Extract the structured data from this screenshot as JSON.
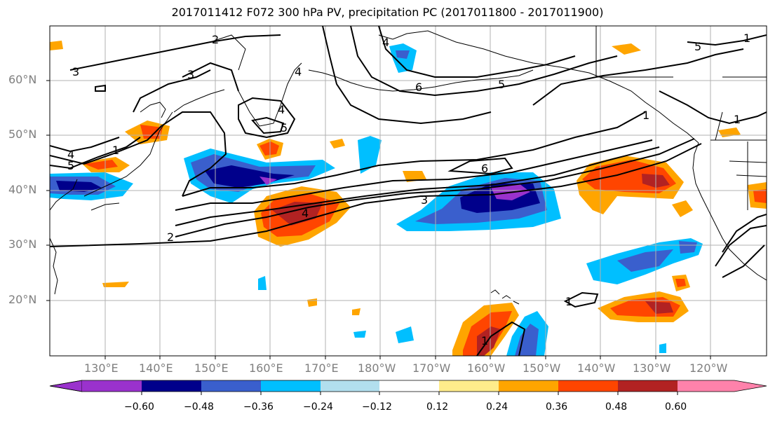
{
  "title": "2017011412 F072 300 hPa PV, precipitation PC (2017011800 - 2017011900)",
  "lat_labels": [
    "60°N",
    "50°N",
    "40°N",
    "30°N",
    "20°N"
  ],
  "lon_labels": [
    "130°E",
    "140°E",
    "150°E",
    "160°E",
    "170°E",
    "180°W",
    "170°W",
    "160°W",
    "150°W",
    "140°W",
    "130°W",
    "120°W"
  ],
  "colorbar": {
    "tick_labels": [
      "−0.60",
      "−0.48",
      "−0.36",
      "−0.24",
      "−0.12",
      "0.12",
      "0.24",
      "0.36",
      "0.48",
      "0.60"
    ],
    "colors": [
      "#9a32cd",
      "#00008b",
      "#3a5fcd",
      "#00bfff",
      "#b2dfee",
      "#ffffff",
      "#ffec8b",
      "#ffa500",
      "#ff4500",
      "#b22222",
      "#ff82ab"
    ]
  },
  "contour_labels": [
    "2",
    "3",
    "1",
    "5",
    "4",
    "3",
    "4",
    "5",
    "4",
    "5",
    "6",
    "5",
    "4",
    "1",
    "1",
    "6",
    "3",
    "4",
    "2",
    "1",
    "1",
    "1"
  ]
}
